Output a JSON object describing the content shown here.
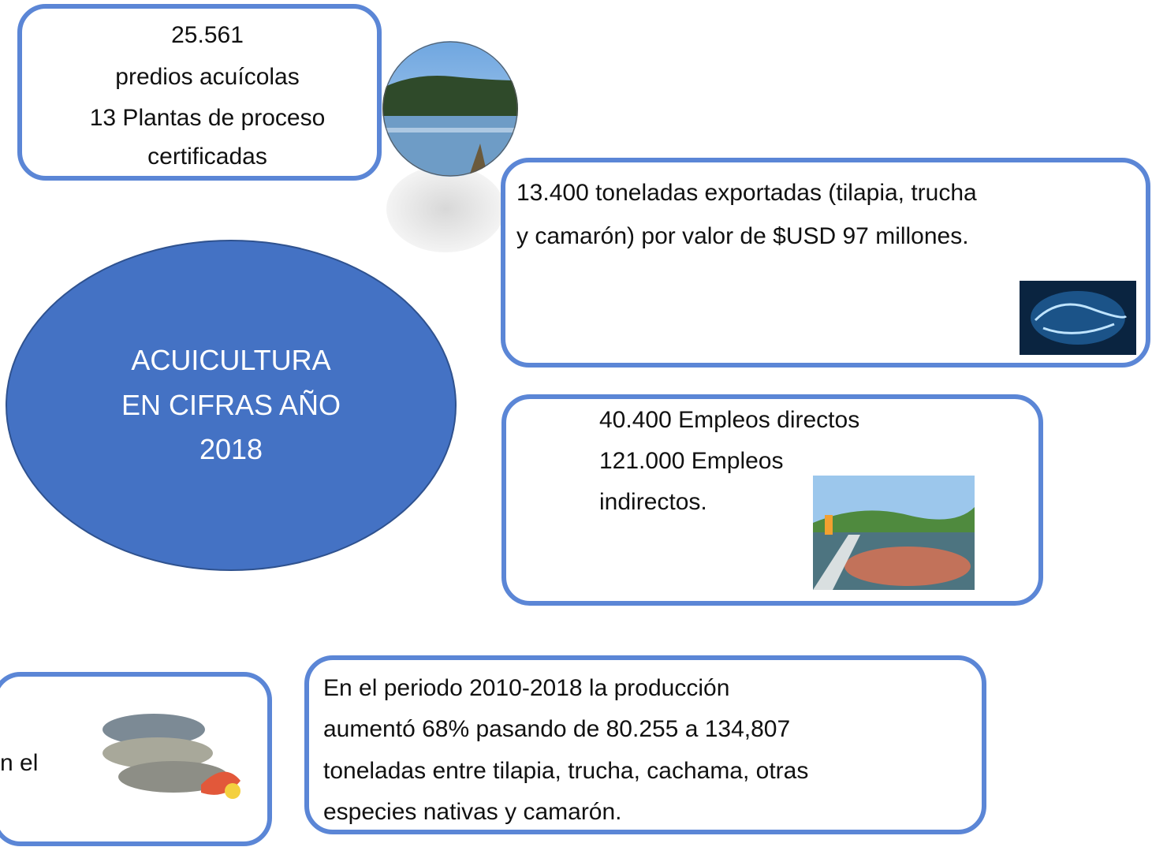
{
  "center": {
    "lines": [
      "ACUICULTURA",
      "EN CIFRAS AÑO",
      "2018"
    ]
  },
  "boxes": [
    {
      "lines": [
        "25.561",
        "predios acuícolas",
        "13 Plantas de proceso",
        "certificadas"
      ]
    },
    {
      "lines": [
        "13.400 toneladas exportadas (tilapia, trucha",
        "y camarón) por valor de $USD 97 millones."
      ]
    },
    {
      "lines": [
        "40.400 Empleos directos",
        "121.000 Empleos",
        "indirectos."
      ]
    },
    {
      "lines": [
        "n el"
      ]
    },
    {
      "lines": [
        "En el periodo 2010-2018 la producción",
        "aumentó 68% pasando de 80.255 a 134,807",
        "toneladas entre tilapia, trucha, cachama, otras",
        "especies nativas y camarón."
      ]
    }
  ]
}
